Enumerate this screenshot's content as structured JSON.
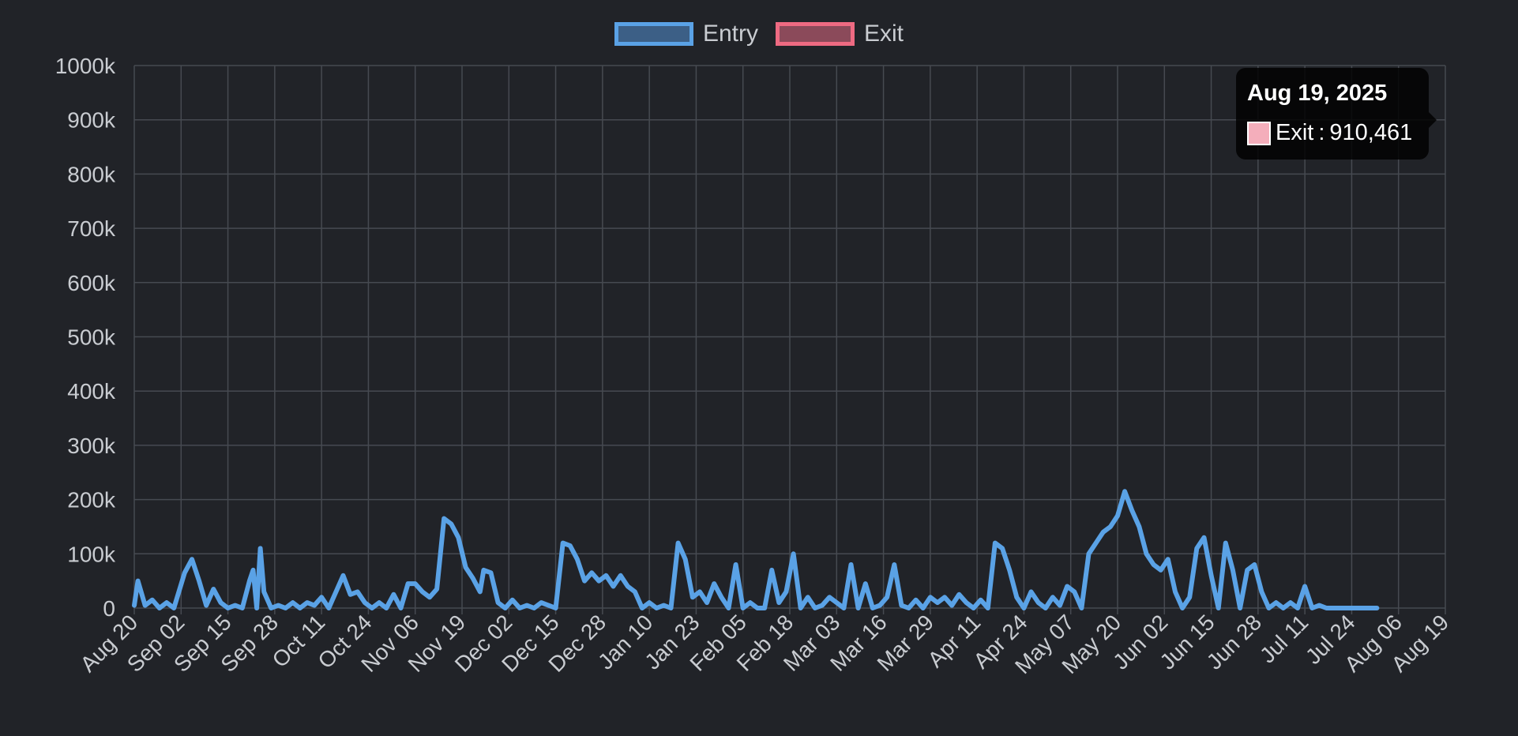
{
  "legend": [
    {
      "label": "Entry",
      "color": "#5aa2e6",
      "fill": "#3c5f86"
    },
    {
      "label": "Exit",
      "color": "#ee6a82",
      "fill": "#8b4a5a"
    }
  ],
  "tooltip": {
    "title": "Aug 19, 2025",
    "series": "Exit",
    "value": "910,461",
    "swatch_color": "#f4aebb"
  },
  "colors": {
    "background": "#212328",
    "grid": "#464a51",
    "ticks": "#c9ccd1"
  },
  "chart_data": {
    "type": "line",
    "ylim": [
      0,
      1000000
    ],
    "y_ticks": [
      "0",
      "100k",
      "200k",
      "300k",
      "400k",
      "500k",
      "600k",
      "700k",
      "800k",
      "900k",
      "1000k"
    ],
    "x_ticks": [
      "Aug 20",
      "Sep 02",
      "Sep 15",
      "Sep 28",
      "Oct 11",
      "Oct 24",
      "Nov 06",
      "Nov 19",
      "Dec 02",
      "Dec 15",
      "Dec 28",
      "Jan 10",
      "Jan 23",
      "Feb 05",
      "Feb 18",
      "Mar 03",
      "Mar 16",
      "Mar 29",
      "Apr 11",
      "Apr 24",
      "May 07",
      "May 20",
      "Jun 02",
      "Jun 15",
      "Jun 28",
      "Jul 11",
      "Jul 24",
      "Aug 06",
      "Aug 19"
    ],
    "x_start": "2024-08-20",
    "x_end": "2025-08-19",
    "series": [
      {
        "name": "Entry",
        "color": "#5aa2e6",
        "points": [
          [
            "2024-08-20",
            5000
          ],
          [
            "2024-08-21",
            50000
          ],
          [
            "2024-08-23",
            5000
          ],
          [
            "2024-08-25",
            15000
          ],
          [
            "2024-08-27",
            0
          ],
          [
            "2024-08-29",
            10000
          ],
          [
            "2024-08-31",
            0
          ],
          [
            "2024-09-03",
            65000
          ],
          [
            "2024-09-05",
            90000
          ],
          [
            "2024-09-07",
            50000
          ],
          [
            "2024-09-09",
            5000
          ],
          [
            "2024-09-11",
            35000
          ],
          [
            "2024-09-13",
            10000
          ],
          [
            "2024-09-15",
            0
          ],
          [
            "2024-09-17",
            5000
          ],
          [
            "2024-09-19",
            0
          ],
          [
            "2024-09-21",
            50000
          ],
          [
            "2024-09-22",
            70000
          ],
          [
            "2024-09-23",
            0
          ],
          [
            "2024-09-24",
            110000
          ],
          [
            "2024-09-25",
            30000
          ],
          [
            "2024-09-27",
            0
          ],
          [
            "2024-09-29",
            5000
          ],
          [
            "2024-10-01",
            0
          ],
          [
            "2024-10-03",
            10000
          ],
          [
            "2024-10-05",
            0
          ],
          [
            "2024-10-07",
            10000
          ],
          [
            "2024-10-09",
            5000
          ],
          [
            "2024-10-11",
            20000
          ],
          [
            "2024-10-13",
            0
          ],
          [
            "2024-10-15",
            30000
          ],
          [
            "2024-10-17",
            60000
          ],
          [
            "2024-10-19",
            25000
          ],
          [
            "2024-10-21",
            30000
          ],
          [
            "2024-10-23",
            10000
          ],
          [
            "2024-10-25",
            0
          ],
          [
            "2024-10-27",
            10000
          ],
          [
            "2024-10-29",
            0
          ],
          [
            "2024-10-31",
            25000
          ],
          [
            "2024-11-02",
            0
          ],
          [
            "2024-11-04",
            45000
          ],
          [
            "2024-11-06",
            45000
          ],
          [
            "2024-11-08",
            30000
          ],
          [
            "2024-11-10",
            20000
          ],
          [
            "2024-11-12",
            35000
          ],
          [
            "2024-11-14",
            165000
          ],
          [
            "2024-11-16",
            155000
          ],
          [
            "2024-11-18",
            130000
          ],
          [
            "2024-11-20",
            75000
          ],
          [
            "2024-11-22",
            55000
          ],
          [
            "2024-11-24",
            30000
          ],
          [
            "2024-11-25",
            70000
          ],
          [
            "2024-11-27",
            65000
          ],
          [
            "2024-11-29",
            10000
          ],
          [
            "2024-12-01",
            0
          ],
          [
            "2024-12-03",
            15000
          ],
          [
            "2024-12-05",
            0
          ],
          [
            "2024-12-07",
            5000
          ],
          [
            "2024-12-09",
            0
          ],
          [
            "2024-12-11",
            10000
          ],
          [
            "2024-12-13",
            5000
          ],
          [
            "2024-12-15",
            0
          ],
          [
            "2024-12-17",
            120000
          ],
          [
            "2024-12-19",
            115000
          ],
          [
            "2024-12-21",
            90000
          ],
          [
            "2024-12-23",
            50000
          ],
          [
            "2024-12-25",
            65000
          ],
          [
            "2024-12-27",
            50000
          ],
          [
            "2024-12-29",
            60000
          ],
          [
            "2024-12-31",
            40000
          ],
          [
            "2025-01-02",
            60000
          ],
          [
            "2025-01-04",
            40000
          ],
          [
            "2025-01-06",
            30000
          ],
          [
            "2025-01-08",
            0
          ],
          [
            "2025-01-10",
            10000
          ],
          [
            "2025-01-12",
            0
          ],
          [
            "2025-01-14",
            5000
          ],
          [
            "2025-01-16",
            0
          ],
          [
            "2025-01-18",
            120000
          ],
          [
            "2025-01-20",
            90000
          ],
          [
            "2025-01-22",
            20000
          ],
          [
            "2025-01-24",
            30000
          ],
          [
            "2025-01-26",
            10000
          ],
          [
            "2025-01-28",
            45000
          ],
          [
            "2025-01-30",
            20000
          ],
          [
            "2025-02-01",
            0
          ],
          [
            "2025-02-03",
            80000
          ],
          [
            "2025-02-05",
            0
          ],
          [
            "2025-02-07",
            10000
          ],
          [
            "2025-02-09",
            0
          ],
          [
            "2025-02-11",
            0
          ],
          [
            "2025-02-13",
            70000
          ],
          [
            "2025-02-15",
            10000
          ],
          [
            "2025-02-17",
            30000
          ],
          [
            "2025-02-19",
            100000
          ],
          [
            "2025-02-21",
            0
          ],
          [
            "2025-02-23",
            20000
          ],
          [
            "2025-02-25",
            0
          ],
          [
            "2025-02-27",
            5000
          ],
          [
            "2025-03-01",
            20000
          ],
          [
            "2025-03-03",
            10000
          ],
          [
            "2025-03-05",
            0
          ],
          [
            "2025-03-07",
            80000
          ],
          [
            "2025-03-09",
            0
          ],
          [
            "2025-03-11",
            45000
          ],
          [
            "2025-03-13",
            0
          ],
          [
            "2025-03-15",
            5000
          ],
          [
            "2025-03-17",
            20000
          ],
          [
            "2025-03-19",
            80000
          ],
          [
            "2025-03-21",
            5000
          ],
          [
            "2025-03-23",
            0
          ],
          [
            "2025-03-25",
            15000
          ],
          [
            "2025-03-27",
            0
          ],
          [
            "2025-03-29",
            20000
          ],
          [
            "2025-03-31",
            10000
          ],
          [
            "2025-04-02",
            20000
          ],
          [
            "2025-04-04",
            5000
          ],
          [
            "2025-04-06",
            25000
          ],
          [
            "2025-04-08",
            10000
          ],
          [
            "2025-04-10",
            0
          ],
          [
            "2025-04-12",
            15000
          ],
          [
            "2025-04-14",
            0
          ],
          [
            "2025-04-16",
            120000
          ],
          [
            "2025-04-18",
            110000
          ],
          [
            "2025-04-20",
            70000
          ],
          [
            "2025-04-22",
            20000
          ],
          [
            "2025-04-24",
            0
          ],
          [
            "2025-04-26",
            30000
          ],
          [
            "2025-04-28",
            10000
          ],
          [
            "2025-04-30",
            0
          ],
          [
            "2025-05-02",
            20000
          ],
          [
            "2025-05-04",
            5000
          ],
          [
            "2025-05-06",
            40000
          ],
          [
            "2025-05-08",
            30000
          ],
          [
            "2025-05-10",
            0
          ],
          [
            "2025-05-12",
            100000
          ],
          [
            "2025-05-14",
            120000
          ],
          [
            "2025-05-16",
            140000
          ],
          [
            "2025-05-18",
            150000
          ],
          [
            "2025-05-20",
            170000
          ],
          [
            "2025-05-22",
            215000
          ],
          [
            "2025-05-24",
            180000
          ],
          [
            "2025-05-26",
            150000
          ],
          [
            "2025-05-28",
            100000
          ],
          [
            "2025-05-30",
            80000
          ],
          [
            "2025-06-01",
            70000
          ],
          [
            "2025-06-03",
            90000
          ],
          [
            "2025-06-05",
            30000
          ],
          [
            "2025-06-07",
            0
          ],
          [
            "2025-06-09",
            20000
          ],
          [
            "2025-06-11",
            110000
          ],
          [
            "2025-06-13",
            130000
          ],
          [
            "2025-06-15",
            60000
          ],
          [
            "2025-06-17",
            0
          ],
          [
            "2025-06-19",
            120000
          ],
          [
            "2025-06-21",
            70000
          ],
          [
            "2025-06-23",
            0
          ],
          [
            "2025-06-25",
            70000
          ],
          [
            "2025-06-27",
            80000
          ],
          [
            "2025-06-29",
            30000
          ],
          [
            "2025-07-01",
            0
          ],
          [
            "2025-07-03",
            10000
          ],
          [
            "2025-07-05",
            0
          ],
          [
            "2025-07-07",
            10000
          ],
          [
            "2025-07-09",
            0
          ],
          [
            "2025-07-11",
            40000
          ],
          [
            "2025-07-13",
            0
          ],
          [
            "2025-07-15",
            5000
          ],
          [
            "2025-07-17",
            0
          ],
          [
            "2025-07-19",
            0
          ],
          [
            "2025-07-21",
            0
          ],
          [
            "2025-07-23",
            0
          ],
          [
            "2025-07-25",
            0
          ],
          [
            "2025-07-27",
            0
          ],
          [
            "2025-07-29",
            0
          ],
          [
            "2025-07-31",
            0
          ]
        ]
      }
    ]
  }
}
